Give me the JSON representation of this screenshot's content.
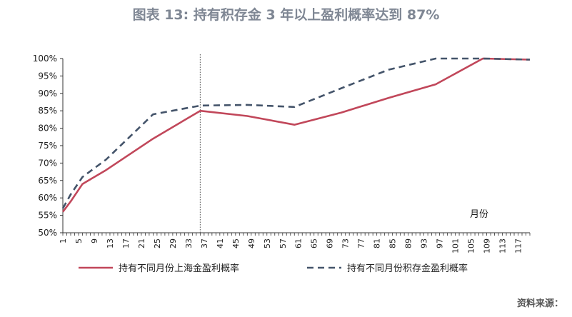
{
  "title": "图表 13: 持有积存金 3 年以上盈利概率达到 87%",
  "source": "资料来源：",
  "chart_data": {
    "type": "line",
    "x_unit_label": "月份",
    "x_ticks": [
      1,
      5,
      9,
      13,
      17,
      21,
      25,
      29,
      33,
      37,
      41,
      45,
      49,
      53,
      57,
      61,
      65,
      69,
      73,
      77,
      81,
      85,
      89,
      93,
      97,
      101,
      105,
      109,
      113,
      117
    ],
    "y_ticks": [
      "50%",
      "55%",
      "60%",
      "65%",
      "70%",
      "75%",
      "80%",
      "85%",
      "90%",
      "95%",
      "100%"
    ],
    "ylim": [
      50,
      100
    ],
    "xlim": [
      1,
      120
    ],
    "reference_line_x": 36,
    "series": [
      {
        "name": "持有不同月份上海金盈利概率",
        "color": "#c1475a",
        "dash": "solid",
        "points": [
          [
            1,
            56
          ],
          [
            3,
            59
          ],
          [
            6,
            64
          ],
          [
            12,
            68
          ],
          [
            24,
            77
          ],
          [
            36,
            85
          ],
          [
            48,
            83.5
          ],
          [
            60,
            81
          ],
          [
            72,
            84.5
          ],
          [
            84,
            88.7
          ],
          [
            96,
            92.6
          ],
          [
            108,
            100
          ],
          [
            120,
            99.7
          ]
        ]
      },
      {
        "name": "持有不同月份积存金盈利概率",
        "color": "#44546a",
        "dash": "dashed",
        "points": [
          [
            1,
            57
          ],
          [
            3,
            61
          ],
          [
            6,
            66
          ],
          [
            12,
            71
          ],
          [
            24,
            84
          ],
          [
            36,
            86.5
          ],
          [
            48,
            86.7
          ],
          [
            60,
            86.1
          ],
          [
            72,
            91.5
          ],
          [
            84,
            96.8
          ],
          [
            96,
            100
          ],
          [
            108,
            100
          ],
          [
            120,
            99.7
          ]
        ]
      }
    ]
  }
}
